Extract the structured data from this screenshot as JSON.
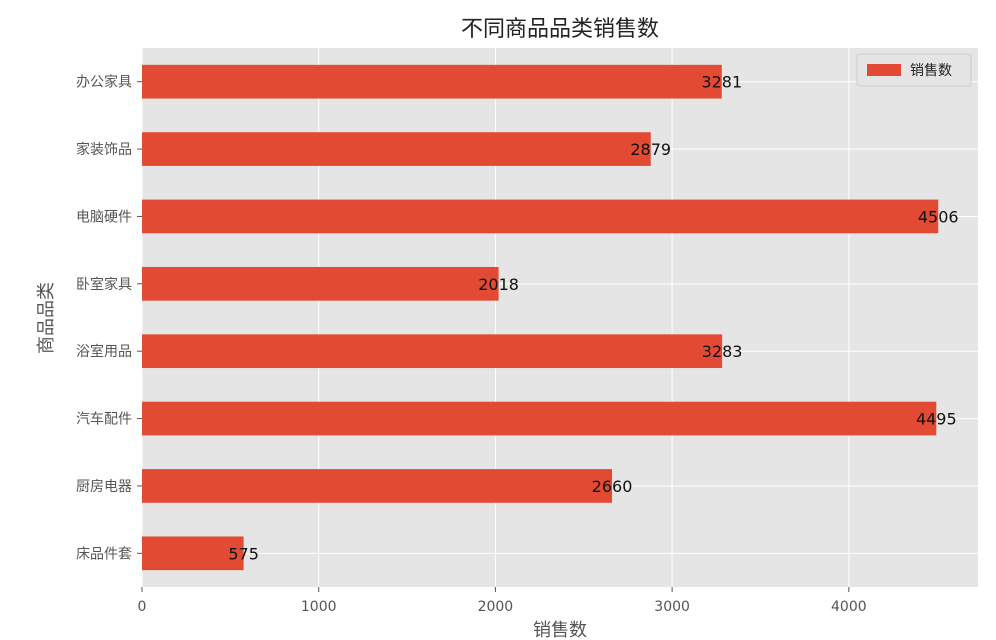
{
  "chart_data": {
    "type": "bar",
    "orientation": "horizontal",
    "title": "不同商品品类销售数",
    "xlabel": "销售数",
    "ylabel": "商品品类",
    "categories": [
      "办公家具",
      "家装饰品",
      "电脑硬件",
      "卧室家具",
      "浴室用品",
      "汽车配件",
      "厨房电器",
      "床品件套"
    ],
    "series": [
      {
        "name": "销售数",
        "values": [
          3281,
          2879,
          4506,
          2018,
          3283,
          4495,
          2660,
          575
        ]
      }
    ],
    "xticks": [
      0,
      1000,
      2000,
      3000,
      4000
    ],
    "xlim": [
      0,
      4731
    ],
    "grid": true,
    "legend_position": "top-right",
    "colors": {
      "bar": "#E24A33",
      "background": "#E5E5E5",
      "grid": "#FFFFFF"
    }
  }
}
